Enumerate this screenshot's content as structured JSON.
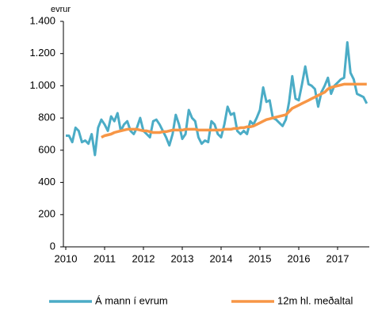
{
  "chart_data": {
    "type": "line",
    "unit_label": "evrur",
    "categories": [
      "2010",
      null,
      null,
      null,
      null,
      null,
      null,
      null,
      null,
      null,
      null,
      null,
      "2011",
      null,
      null,
      null,
      null,
      null,
      null,
      null,
      null,
      null,
      null,
      null,
      "2012",
      null,
      null,
      null,
      null,
      null,
      null,
      null,
      null,
      null,
      null,
      null,
      "2013",
      null,
      null,
      null,
      null,
      null,
      null,
      null,
      null,
      null,
      null,
      null,
      "2014",
      null,
      null,
      null,
      null,
      null,
      null,
      null,
      null,
      null,
      null,
      null,
      "2015",
      null,
      null,
      null,
      null,
      null,
      null,
      null,
      null,
      null,
      null,
      null,
      "2016",
      null,
      null,
      null,
      null,
      null,
      null,
      null,
      null,
      null,
      null,
      null,
      "2017",
      null,
      null,
      null,
      null,
      null,
      null,
      null,
      null,
      null
    ],
    "series": [
      {
        "name": "Á mann í evrum",
        "color": "#4bacc6",
        "values": [
          690,
          690,
          650,
          740,
          720,
          650,
          660,
          640,
          700,
          570,
          740,
          790,
          760,
          720,
          810,
          780,
          830,
          720,
          760,
          780,
          720,
          700,
          740,
          800,
          720,
          700,
          680,
          780,
          790,
          760,
          720,
          680,
          630,
          700,
          820,
          760,
          670,
          700,
          850,
          800,
          780,
          680,
          640,
          660,
          650,
          780,
          760,
          700,
          680,
          760,
          870,
          820,
          830,
          720,
          700,
          720,
          700,
          780,
          760,
          800,
          850,
          990,
          900,
          910,
          800,
          790,
          770,
          750,
          790,
          900,
          1060,
          920,
          910,
          1010,
          1120,
          1010,
          1000,
          980,
          870,
          960,
          1000,
          1050,
          950,
          1000,
          1020,
          1040,
          1050,
          1270,
          1080,
          1040,
          950,
          940,
          930,
          890
        ]
      },
      {
        "name": "12m hl. meðaltal",
        "color": "#f79646",
        "values": [
          null,
          null,
          null,
          null,
          null,
          null,
          null,
          null,
          null,
          null,
          null,
          680,
          690,
          695,
          700,
          710,
          715,
          720,
          725,
          730,
          730,
          730,
          730,
          725,
          720,
          720,
          715,
          710,
          710,
          710,
          715,
          715,
          720,
          725,
          725,
          725,
          725,
          730,
          730,
          730,
          730,
          725,
          725,
          725,
          725,
          725,
          725,
          725,
          725,
          730,
          730,
          730,
          735,
          735,
          740,
          740,
          745,
          745,
          750,
          760,
          770,
          780,
          790,
          795,
          800,
          805,
          810,
          815,
          820,
          840,
          860,
          870,
          880,
          890,
          900,
          910,
          920,
          930,
          940,
          950,
          960,
          980,
          990,
          995,
          1000,
          1005,
          1010,
          1010,
          1010,
          1010,
          1010,
          1010,
          1010,
          1010
        ]
      }
    ],
    "ylim": [
      0,
      1400
    ],
    "yticks": [
      0,
      200,
      400,
      600,
      800,
      {
        "value": 1000,
        "label": "1.000"
      },
      {
        "value": 1200,
        "label": "1.200"
      },
      {
        "value": 1400,
        "label": "1.400"
      }
    ],
    "grid": false,
    "legend": "bottom"
  }
}
